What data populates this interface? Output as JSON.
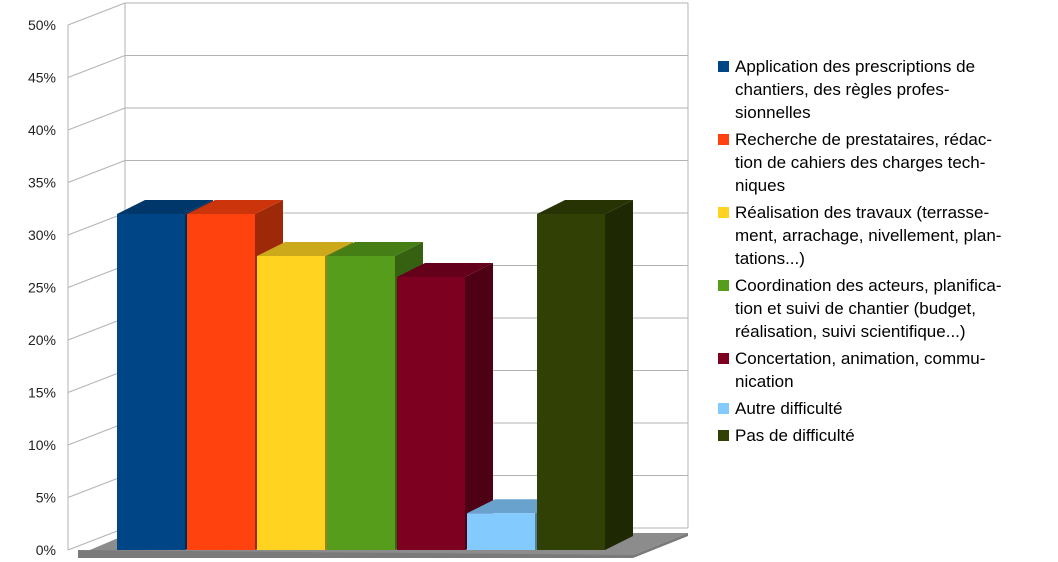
{
  "chart_data": {
    "type": "bar",
    "title": "",
    "xlabel": "",
    "ylabel": "",
    "ylim": [
      0,
      50
    ],
    "yticks": [
      "0%",
      "5%",
      "10%",
      "15%",
      "20%",
      "25%",
      "30%",
      "35%",
      "40%",
      "45%",
      "50%"
    ],
    "grid": true,
    "legend_position": "right",
    "categories": [
      "Application des prescriptions de\nchantiers, des règles profes-\nsionnelles",
      "Recherche de prestataires, rédac-\ntion de cahiers des charges tech-\nniques",
      "Réalisation des travaux (terrasse-\nment, arrachage, nivellement, plan-\ntations...)",
      "Coordination des acteurs, planifica-\ntion et suivi de chantier (budget,\nréalisation, suivi scientifique...)",
      "Concertation, animation, commu-\nnication",
      "Autre difficulté",
      "Pas de difficulté"
    ],
    "values": [
      32,
      32,
      28,
      28,
      26,
      3.5,
      32
    ],
    "colors": [
      "#004586",
      "#ff420e",
      "#ffd320",
      "#579d1c",
      "#7e0021",
      "#83caff",
      "#314004"
    ]
  }
}
